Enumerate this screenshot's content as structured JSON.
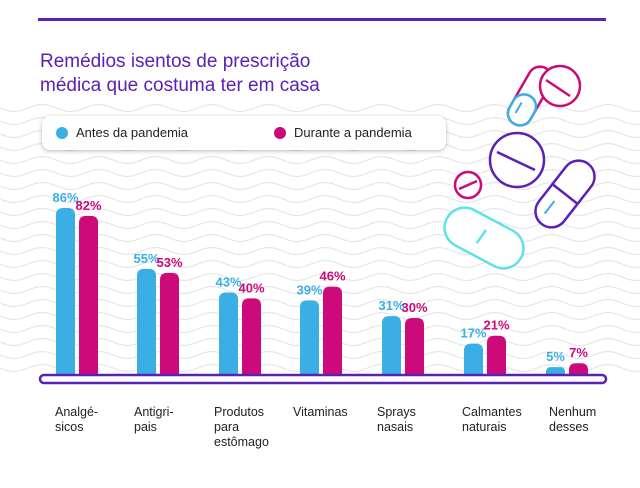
{
  "title": {
    "line1": "Remédios isentos de prescrição",
    "line2": "médica que costuma ter em casa"
  },
  "colors": {
    "before": "#3baee5",
    "during": "#cc0a79",
    "accent": "#5b21b6",
    "waves": "#e6e6e6"
  },
  "legend": {
    "before": "Antes da pandemia",
    "during": "Durante a pandemia"
  },
  "decor": {
    "icons": [
      "pill-capsule-icon",
      "pill-tablet-icon"
    ]
  },
  "chart_data": {
    "type": "bar",
    "categories": [
      [
        "Analgé-",
        "sicos"
      ],
      [
        "Antigri-",
        "pais"
      ],
      [
        "Produtos",
        "para",
        "estômago"
      ],
      [
        "Vitaminas"
      ],
      [
        "Sprays",
        "nasais"
      ],
      [
        "Calmantes",
        "naturais"
      ],
      [
        "Nenhum",
        "desses"
      ]
    ],
    "series": [
      {
        "name": "Antes da pandemia",
        "values": [
          86,
          55,
          43,
          39,
          31,
          17,
          5
        ]
      },
      {
        "name": "Durante a pandemia",
        "values": [
          82,
          53,
          40,
          46,
          30,
          21,
          7
        ]
      }
    ],
    "value_labels": {
      "before": [
        "86%",
        "55%",
        "43%",
        "39%",
        "31%",
        "17%",
        "5%"
      ],
      "during": [
        "82%",
        "53%",
        "40%",
        "46%",
        "30%",
        "21%",
        "7%"
      ]
    },
    "ylim": [
      0,
      100
    ],
    "grid": false,
    "legend_position": "top-left"
  }
}
